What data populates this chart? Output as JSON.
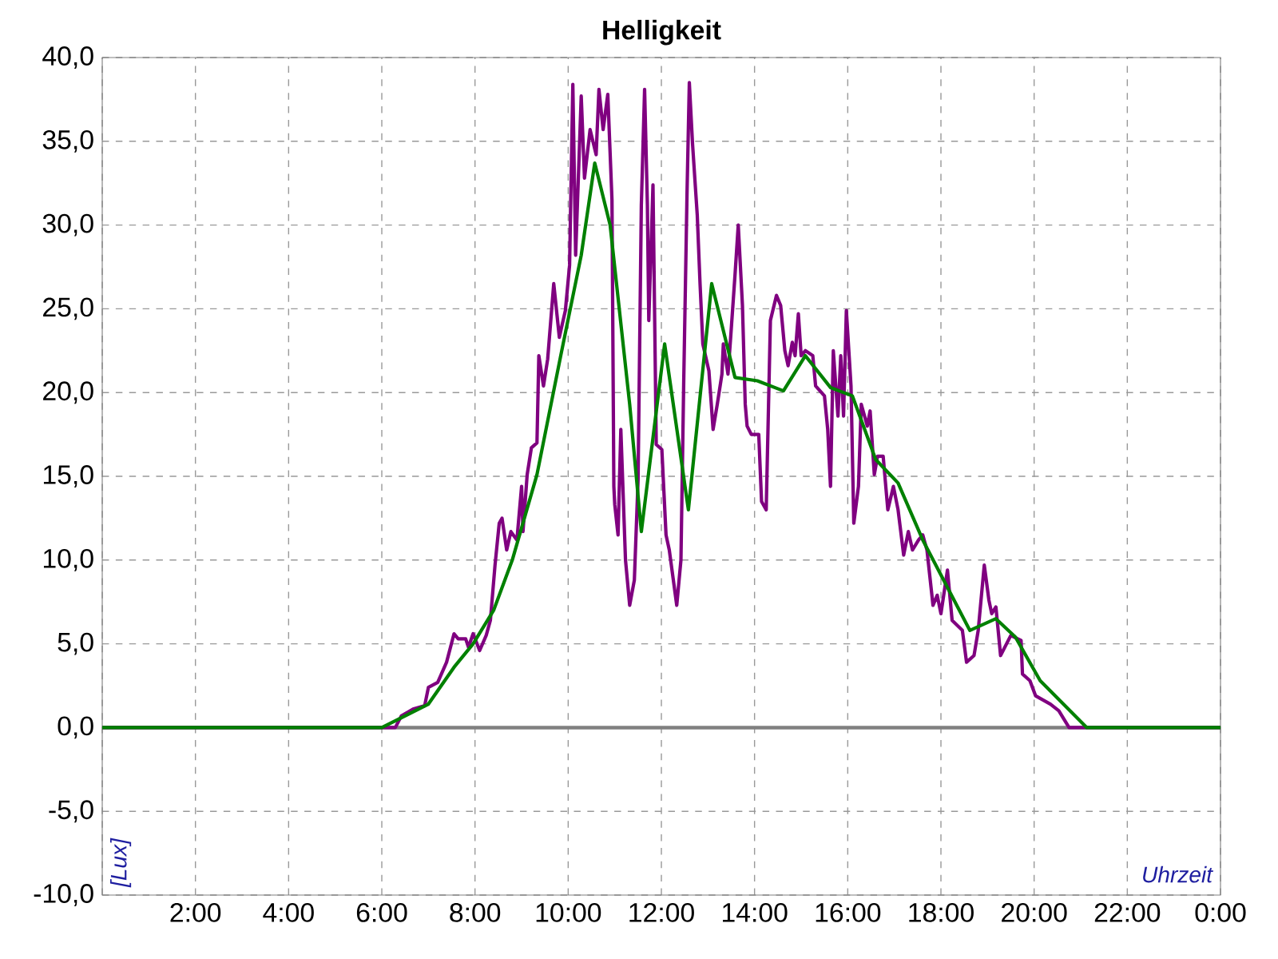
{
  "chart_data": {
    "type": "line",
    "title": "Helligkeit",
    "xlabel": "Uhrzeit",
    "ylabel": "[Lux]",
    "xlim": [
      0,
      24
    ],
    "ylim": [
      -10,
      40
    ],
    "xticks": [
      {
        "value": 0,
        "label": null
      },
      {
        "value": 2,
        "label": "2:00"
      },
      {
        "value": 4,
        "label": "4:00"
      },
      {
        "value": 6,
        "label": "6:00"
      },
      {
        "value": 8,
        "label": "8:00"
      },
      {
        "value": 10,
        "label": "10:00"
      },
      {
        "value": 12,
        "label": "12:00"
      },
      {
        "value": 14,
        "label": "14:00"
      },
      {
        "value": 16,
        "label": "16:00"
      },
      {
        "value": 18,
        "label": "18:00"
      },
      {
        "value": 20,
        "label": "20:00"
      },
      {
        "value": 22,
        "label": "22:00"
      },
      {
        "value": 24,
        "label": "0:00"
      }
    ],
    "yticks": [
      {
        "value": -10,
        "label": "-10,0"
      },
      {
        "value": -5,
        "label": "-5,0"
      },
      {
        "value": 0,
        "label": "0,0"
      },
      {
        "value": 5,
        "label": "5,0"
      },
      {
        "value": 10,
        "label": "10,0"
      },
      {
        "value": 15,
        "label": "15,0"
      },
      {
        "value": 20,
        "label": "20,0"
      },
      {
        "value": 25,
        "label": "25,0"
      },
      {
        "value": 30,
        "label": "30,0"
      },
      {
        "value": 35,
        "label": "35,0"
      },
      {
        "value": 40,
        "label": "40,0"
      }
    ],
    "grid": true,
    "marker": "none",
    "line_style": "solid",
    "ref_lines": [
      {
        "axis": "y",
        "value": 0,
        "color": "#808080"
      }
    ],
    "series": [
      {
        "color": "#800080",
        "x": [
          0,
          6.29,
          6.42,
          6.67,
          6.92,
          7.0,
          7.2,
          7.39,
          7.55,
          7.64,
          7.8,
          7.86,
          7.96,
          8.1,
          8.24,
          8.33,
          8.43,
          8.52,
          8.58,
          8.68,
          8.77,
          8.9,
          9.0,
          9.03,
          9.12,
          9.21,
          9.33,
          9.37,
          9.47,
          9.56,
          9.69,
          9.81,
          9.94,
          10.03,
          10.1,
          10.16,
          10.28,
          10.35,
          10.47,
          10.6,
          10.66,
          10.75,
          10.85,
          10.94,
          10.98,
          11.0,
          11.07,
          11.13,
          11.23,
          11.32,
          11.42,
          11.5,
          11.57,
          11.64,
          11.7,
          11.73,
          11.82,
          11.89,
          12.01,
          12.1,
          12.17,
          12.33,
          12.42,
          12.48,
          12.55,
          12.6,
          12.67,
          12.77,
          12.83,
          12.89,
          13.02,
          13.11,
          13.2,
          13.3,
          13.33,
          13.43,
          13.49,
          13.58,
          13.65,
          13.74,
          13.8,
          13.84,
          13.93,
          14.09,
          14.15,
          14.25,
          14.34,
          14.47,
          14.56,
          14.65,
          14.72,
          14.81,
          14.87,
          14.94,
          15.0,
          15.09,
          15.25,
          15.31,
          15.5,
          15.57,
          15.63,
          15.69,
          15.79,
          15.85,
          15.91,
          15.97,
          16.07,
          16.13,
          16.23,
          16.29,
          16.42,
          16.48,
          16.57,
          16.64,
          16.76,
          16.86,
          16.98,
          17.08,
          17.2,
          17.3,
          17.39,
          17.52,
          17.61,
          17.7,
          17.83,
          17.92,
          18.0,
          18.14,
          18.24,
          18.46,
          18.55,
          18.71,
          18.8,
          18.93,
          19.03,
          19.09,
          19.18,
          19.28,
          19.5,
          19.72,
          19.75,
          19.91,
          20.03,
          20.35,
          20.53,
          20.75,
          24
        ],
        "values": [
          0,
          0,
          0.7,
          1.1,
          1.3,
          2.4,
          2.7,
          3.9,
          5.6,
          5.3,
          5.3,
          4.8,
          5.6,
          4.6,
          5.5,
          6.4,
          9.7,
          12.2,
          12.5,
          10.6,
          11.7,
          11.2,
          14.4,
          11.7,
          15.1,
          16.7,
          17.0,
          22.2,
          20.4,
          22.0,
          26.5,
          23.3,
          24.9,
          27.6,
          38.4,
          28.2,
          37.7,
          32.8,
          35.7,
          34.2,
          38.1,
          35.7,
          37.8,
          31.5,
          14.4,
          13.3,
          11.5,
          17.8,
          10.0,
          7.3,
          8.8,
          14.8,
          31.2,
          38.1,
          31.2,
          24.3,
          32.4,
          16.9,
          16.6,
          11.5,
          10.6,
          7.3,
          10.0,
          20.7,
          31.8,
          38.5,
          34.8,
          30.6,
          26.5,
          22.9,
          21.3,
          17.8,
          19.3,
          21.1,
          22.9,
          21.1,
          23.4,
          27.0,
          30.0,
          25.2,
          19.3,
          18.0,
          17.5,
          17.5,
          13.5,
          13.0,
          24.3,
          25.8,
          25.2,
          22.5,
          21.6,
          23.0,
          22.2,
          24.7,
          22.2,
          22.5,
          22.2,
          20.4,
          19.8,
          17.8,
          14.4,
          22.5,
          18.6,
          22.2,
          18.6,
          24.9,
          20.4,
          12.2,
          14.4,
          19.3,
          18.0,
          18.9,
          15.1,
          16.2,
          16.2,
          13.0,
          14.4,
          13.0,
          10.3,
          11.7,
          10.6,
          11.2,
          11.5,
          10.6,
          7.3,
          7.9,
          6.8,
          9.4,
          6.4,
          5.8,
          3.9,
          4.3,
          5.8,
          9.7,
          7.6,
          6.8,
          7.2,
          4.3,
          5.5,
          5.2,
          3.2,
          2.8,
          1.9,
          1.4,
          1.0,
          0,
          0
        ]
      },
      {
        "color": "#008000",
        "x": [
          0,
          6.0,
          7.0,
          7.55,
          7.96,
          8.4,
          8.8,
          9.33,
          9.84,
          10.28,
          10.57,
          10.9,
          11.32,
          11.57,
          12.07,
          12.58,
          13.08,
          13.58,
          14.06,
          14.62,
          15.09,
          15.63,
          16.1,
          16.6,
          17.08,
          17.61,
          18.62,
          19.18,
          19.6,
          20.13,
          21.13,
          24
        ],
        "values": [
          0,
          0,
          1.4,
          3.6,
          5.0,
          7.0,
          10.0,
          15.1,
          22.2,
          28.2,
          33.7,
          30.0,
          19.3,
          11.7,
          22.9,
          13.0,
          26.5,
          20.9,
          20.7,
          20.1,
          22.2,
          20.3,
          19.8,
          16.0,
          14.6,
          11.2,
          5.8,
          6.5,
          5.4,
          2.8,
          0,
          0
        ]
      }
    ]
  }
}
